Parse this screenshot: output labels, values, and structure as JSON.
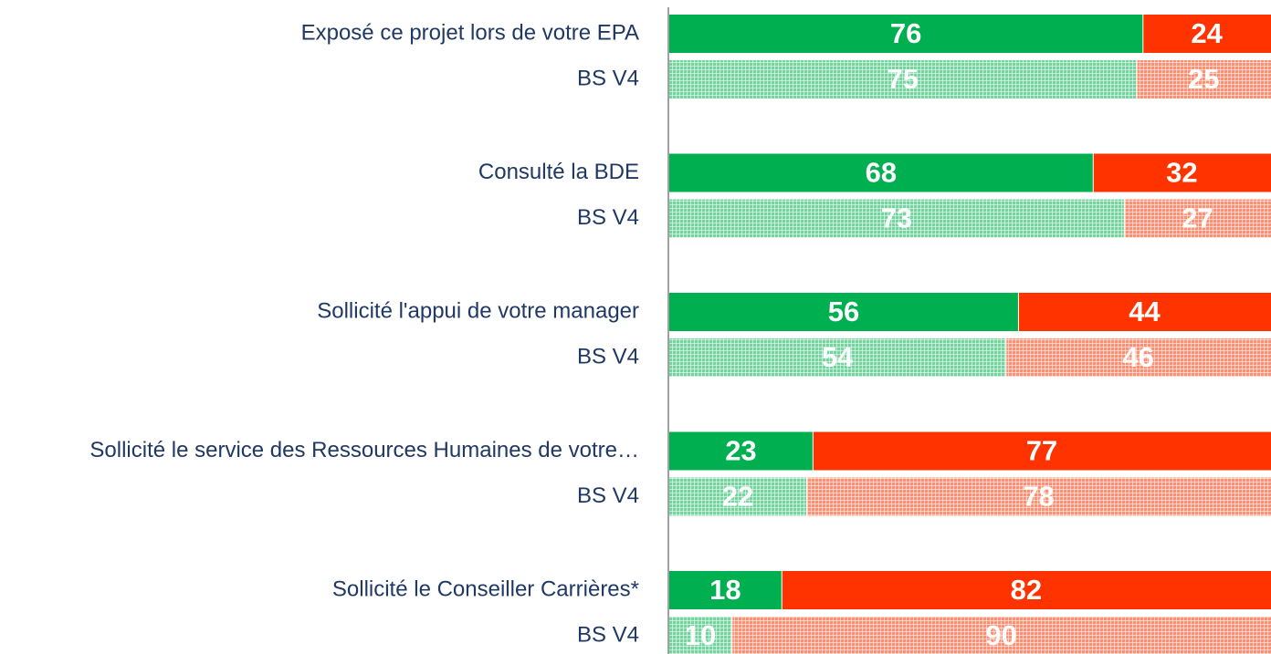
{
  "chart_data": {
    "type": "stacked-bar-horizontal",
    "categories": [
      "Exposé ce projet lors de votre EPA",
      "BS V4",
      "Consulté la BDE",
      "BS V4",
      "Sollicité l'appui de votre manager",
      "BS V4",
      "Sollicité le service des Ressources Humaines de votre…",
      "BS V4",
      "Sollicité le Conseiller Carrières*",
      "BS V4"
    ],
    "series": [
      {
        "color": "#00b050",
        "values": [
          76,
          75,
          68,
          73,
          56,
          54,
          23,
          22,
          18,
          10
        ]
      },
      {
        "color": "#ff3300",
        "values": [
          24,
          25,
          32,
          27,
          44,
          46,
          77,
          78,
          82,
          90
        ]
      }
    ],
    "hatched": [
      false,
      true,
      false,
      true,
      false,
      true,
      false,
      true,
      false,
      true
    ],
    "xlim": [
      0,
      100
    ]
  }
}
